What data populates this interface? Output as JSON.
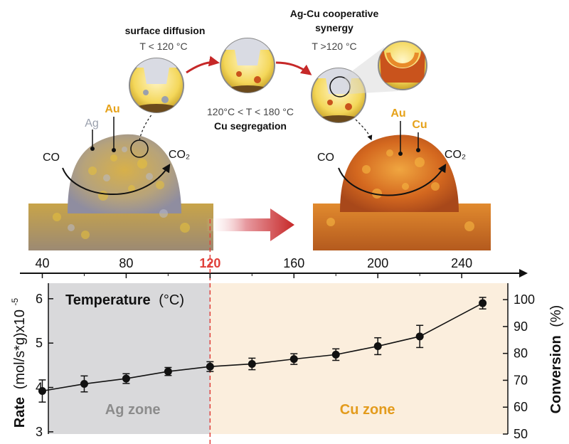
{
  "schematic": {
    "step1_title": "surface diffusion",
    "step1_temp": "T < 120 °C",
    "step2_temp": "120°C < T < 180 °C",
    "step2_title": "Cu segregation",
    "step3_title_line1": "Ag-Cu cooperative",
    "step3_title_line2": "synergy",
    "step3_temp": "T >120 °C",
    "left_particle": {
      "label_ag": "Ag",
      "label_au": "Au",
      "reactant": "CO",
      "product": "CO₂"
    },
    "right_particle": {
      "label_au": "Au",
      "label_cu": "Cu",
      "reactant": "CO",
      "product": "CO₂"
    },
    "colors": {
      "gold": "#e6a21a",
      "silver": "#9aa0ad",
      "copper": "#c9531c",
      "arrow_red": "#c62828"
    }
  },
  "chart_data": {
    "type": "scatter",
    "title": "",
    "x_label_inner": "Temperature",
    "x_label_unit": "(°C)",
    "x_ticks": [
      "40",
      "80",
      "120",
      "160",
      "200",
      "240"
    ],
    "x_highlight_tick": "120",
    "xlim": [
      30,
      262
    ],
    "y_label_left_bold": "Rate",
    "y_label_left_rest": "(mol/s*g)x10",
    "y_label_left_exp": "-5",
    "y_ticks_left": [
      "3",
      "4",
      "5",
      "6"
    ],
    "ylim_left": [
      2.95,
      6.35
    ],
    "y_label_right_bold": "Conversion",
    "y_label_right_rest": "(%)",
    "y_ticks_right": [
      "50",
      "60",
      "70",
      "80",
      "90",
      "100"
    ],
    "ylim_right": [
      50,
      104
    ],
    "series": [
      {
        "x": [
          40,
          60,
          80,
          100,
          120,
          140,
          160,
          180,
          200,
          220,
          250
        ],
        "values": [
          3.92,
          4.08,
          4.2,
          4.36,
          4.47,
          4.53,
          4.64,
          4.74,
          4.93,
          5.15,
          5.9
        ],
        "error": [
          0.25,
          0.18,
          0.11,
          0.09,
          0.11,
          0.13,
          0.12,
          0.13,
          0.19,
          0.25,
          0.13
        ]
      }
    ],
    "zones": [
      {
        "label": "Ag zone",
        "from": 30,
        "to": 120,
        "color": "#d9d9db"
      },
      {
        "label": "Cu zone",
        "from": 120,
        "to": 262,
        "color": "#fbeedd"
      }
    ],
    "zone_label_colors": [
      "#8c8c8c",
      "#e39b1c"
    ],
    "divider_x": 120,
    "divider_color": "#e0403a",
    "grid": false,
    "legend": "none"
  }
}
